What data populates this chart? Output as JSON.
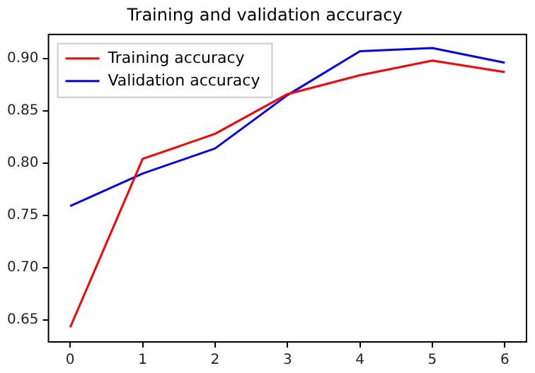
{
  "chart_data": {
    "type": "line",
    "title": "Training and validation accuracy",
    "x": [
      0,
      1,
      2,
      3,
      4,
      5,
      6
    ],
    "series": [
      {
        "name": "Training accuracy",
        "color": "#ff0000",
        "values": [
          0.643,
          0.804,
          0.828,
          0.866,
          0.884,
          0.898,
          0.887
        ]
      },
      {
        "name": "Validation accuracy",
        "color": "#0000ff",
        "values": [
          0.759,
          0.79,
          0.814,
          0.865,
          0.907,
          0.91,
          0.896
        ]
      }
    ],
    "xlim": [
      -0.3,
      6.3
    ],
    "xticks": [
      0,
      1,
      2,
      3,
      4,
      5,
      6
    ],
    "ylim": [
      0.629,
      0.923
    ],
    "yticks": [
      {
        "value": 0.65,
        "label": "0.65"
      },
      {
        "value": 0.7,
        "label": "0.70"
      },
      {
        "value": 0.75,
        "label": "0.75"
      },
      {
        "value": 0.8,
        "label": "0.80"
      },
      {
        "value": 0.85,
        "label": "0.85"
      },
      {
        "value": 0.9,
        "label": "0.90"
      }
    ],
    "legend": "top left",
    "grid": false,
    "marker": "none",
    "line_style": "solid"
  }
}
